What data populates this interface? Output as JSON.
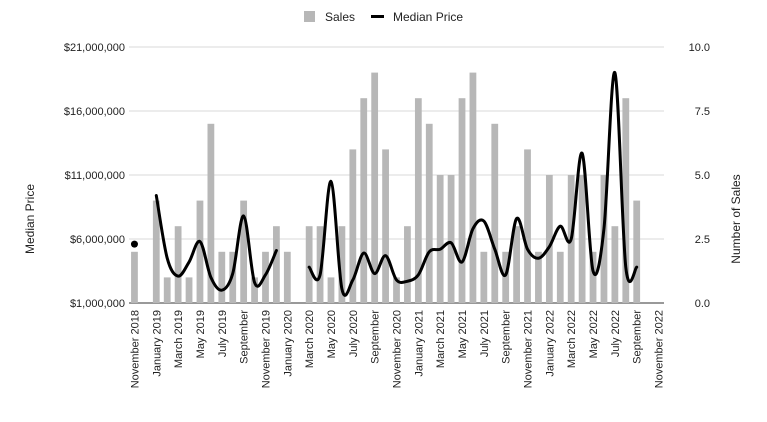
{
  "chart_data": {
    "type": "bar",
    "legend": {
      "position": "top",
      "entries": [
        {
          "label": "Sales",
          "color": "#b7b7b7"
        },
        {
          "label": "Median Price",
          "color": "#000000"
        }
      ]
    },
    "ylabel_left": "Median Price",
    "ylabel_right": "Number of Sales",
    "y_left": {
      "min": 1000000,
      "max": 21000000,
      "ticks": [
        "$1,000,000",
        "$6,000,000",
        "$11,000,000",
        "$16,000,000",
        "$21,000,000"
      ],
      "tick_values": [
        1000000,
        6000000,
        11000000,
        16000000,
        21000000
      ]
    },
    "y_right": {
      "min": 0,
      "max": 10,
      "ticks": [
        "0.0",
        "2.5",
        "5.0",
        "7.5",
        "10.0"
      ],
      "tick_values": [
        0,
        2.5,
        5,
        7.5,
        10
      ]
    },
    "grid": true,
    "x_tick_labels": [
      "November 2018",
      "January 2019",
      "March 2019",
      "May 2019",
      "July 2019",
      "September",
      "November 2019",
      "January 2020",
      "March 2020",
      "May 2020",
      "July 2020",
      "September",
      "November 2020",
      "January 2021",
      "March 2021",
      "May 2021",
      "July 2021",
      "September",
      "November 2021",
      "January 2022",
      "March 2022",
      "May 2022",
      "July 2022",
      "September",
      "November 2022"
    ],
    "months": [
      "Nov 2018",
      "Dec 2018",
      "Jan 2019",
      "Feb 2019",
      "Mar 2019",
      "Apr 2019",
      "May 2019",
      "Jun 2019",
      "Jul 2019",
      "Aug 2019",
      "Sep 2019",
      "Oct 2019",
      "Nov 2019",
      "Dec 2019",
      "Jan 2020",
      "Feb 2020",
      "Mar 2020",
      "Apr 2020",
      "May 2020",
      "Jun 2020",
      "Jul 2020",
      "Aug 2020",
      "Sep 2020",
      "Oct 2020",
      "Nov 2020",
      "Dec 2020",
      "Jan 2021",
      "Feb 2021",
      "Mar 2021",
      "Apr 2021",
      "May 2021",
      "Jun 2021",
      "Jul 2021",
      "Aug 2021",
      "Sep 2021",
      "Oct 2021",
      "Nov 2021",
      "Dec 2021",
      "Jan 2022",
      "Feb 2022",
      "Mar 2022",
      "Apr 2022",
      "May 2022",
      "Jun 2022",
      "Jul 2022",
      "Aug 2022",
      "Sep 2022",
      "Oct 2022",
      "Nov 2022"
    ],
    "series": [
      {
        "name": "Sales",
        "type": "bar",
        "axis": "right",
        "values": [
          2,
          0,
          4,
          1,
          3,
          1,
          4,
          7,
          2,
          2,
          4,
          1,
          2,
          3,
          2,
          0,
          3,
          3,
          1,
          3,
          6,
          8,
          9,
          6,
          1,
          3,
          8,
          7,
          5,
          5,
          8,
          9,
          2,
          7,
          2,
          3,
          6,
          2,
          5,
          2,
          5,
          5,
          2,
          5,
          3,
          8,
          4,
          0,
          0
        ]
      },
      {
        "name": "Median Price",
        "type": "line",
        "axis": "left",
        "values": [
          5600000,
          null,
          9400000,
          4500000,
          3100000,
          4200000,
          5800000,
          3000000,
          2000000,
          3300000,
          7800000,
          2600000,
          3200000,
          5100000,
          null,
          null,
          3800000,
          3200000,
          10500000,
          2100000,
          2800000,
          4900000,
          3300000,
          4700000,
          2800000,
          2700000,
          3200000,
          5000000,
          5200000,
          5700000,
          4200000,
          6800000,
          7400000,
          5200000,
          3200000,
          7600000,
          5200000,
          4500000,
          5400000,
          7000000,
          6000000,
          12700000,
          3500000,
          6800000,
          19000000,
          3800000,
          3800000,
          null,
          null
        ]
      }
    ]
  }
}
